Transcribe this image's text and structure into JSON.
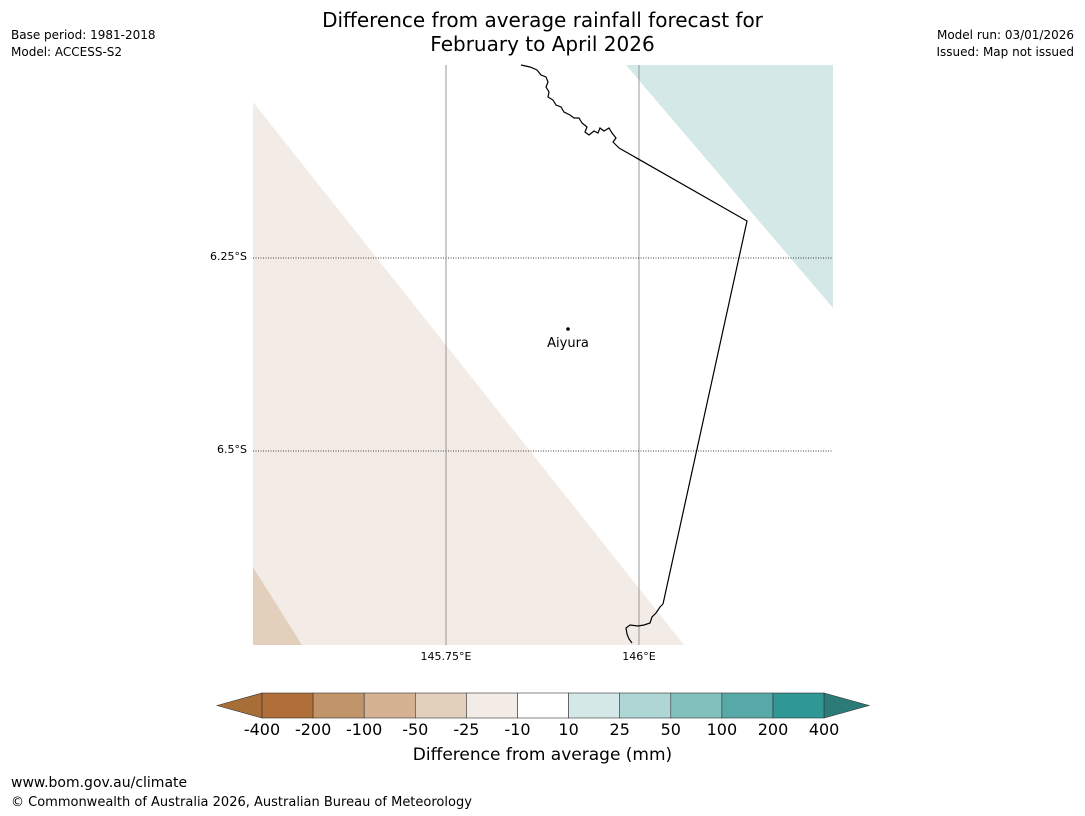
{
  "header": {
    "title_line1": "Difference from average rainfall forecast for",
    "title_line2": "February to April 2026",
    "base_period": "Base period: 1981-2018",
    "model": "Model: ACCESS-S2",
    "model_run": "Model run: 03/01/2026",
    "issued": "Issued: Map not issued"
  },
  "map": {
    "lat_labels": [
      "6.25°S",
      "6.5°S"
    ],
    "lon_labels": [
      "145.75°E",
      "146°E"
    ],
    "place_name": "Aiyura",
    "fill_colors": {
      "light_brown": "#f3ece6",
      "tan": "#e3d0bc",
      "light_teal": "#d5e8e8",
      "border_line": "#000000",
      "graticule": "#808080"
    }
  },
  "colorbar": {
    "colors": [
      "#a86e38",
      "#b06f38",
      "#c29469",
      "#d4b292",
      "#e3d0bc",
      "#f3ece6",
      "#ffffff",
      "#d5e8e8",
      "#add6d5",
      "#82c0bd",
      "#57a9a8",
      "#2f9794",
      "#2b7b78"
    ],
    "ticks": [
      "-400",
      "-200",
      "-100",
      "-50",
      "-25",
      "-10",
      "10",
      "25",
      "50",
      "100",
      "200",
      "400"
    ],
    "label": "Difference from average (mm)"
  },
  "footer": {
    "url": "www.bom.gov.au/climate",
    "copyright": "© Commonwealth of Australia 2026, Australian Bureau of Meteorology"
  }
}
